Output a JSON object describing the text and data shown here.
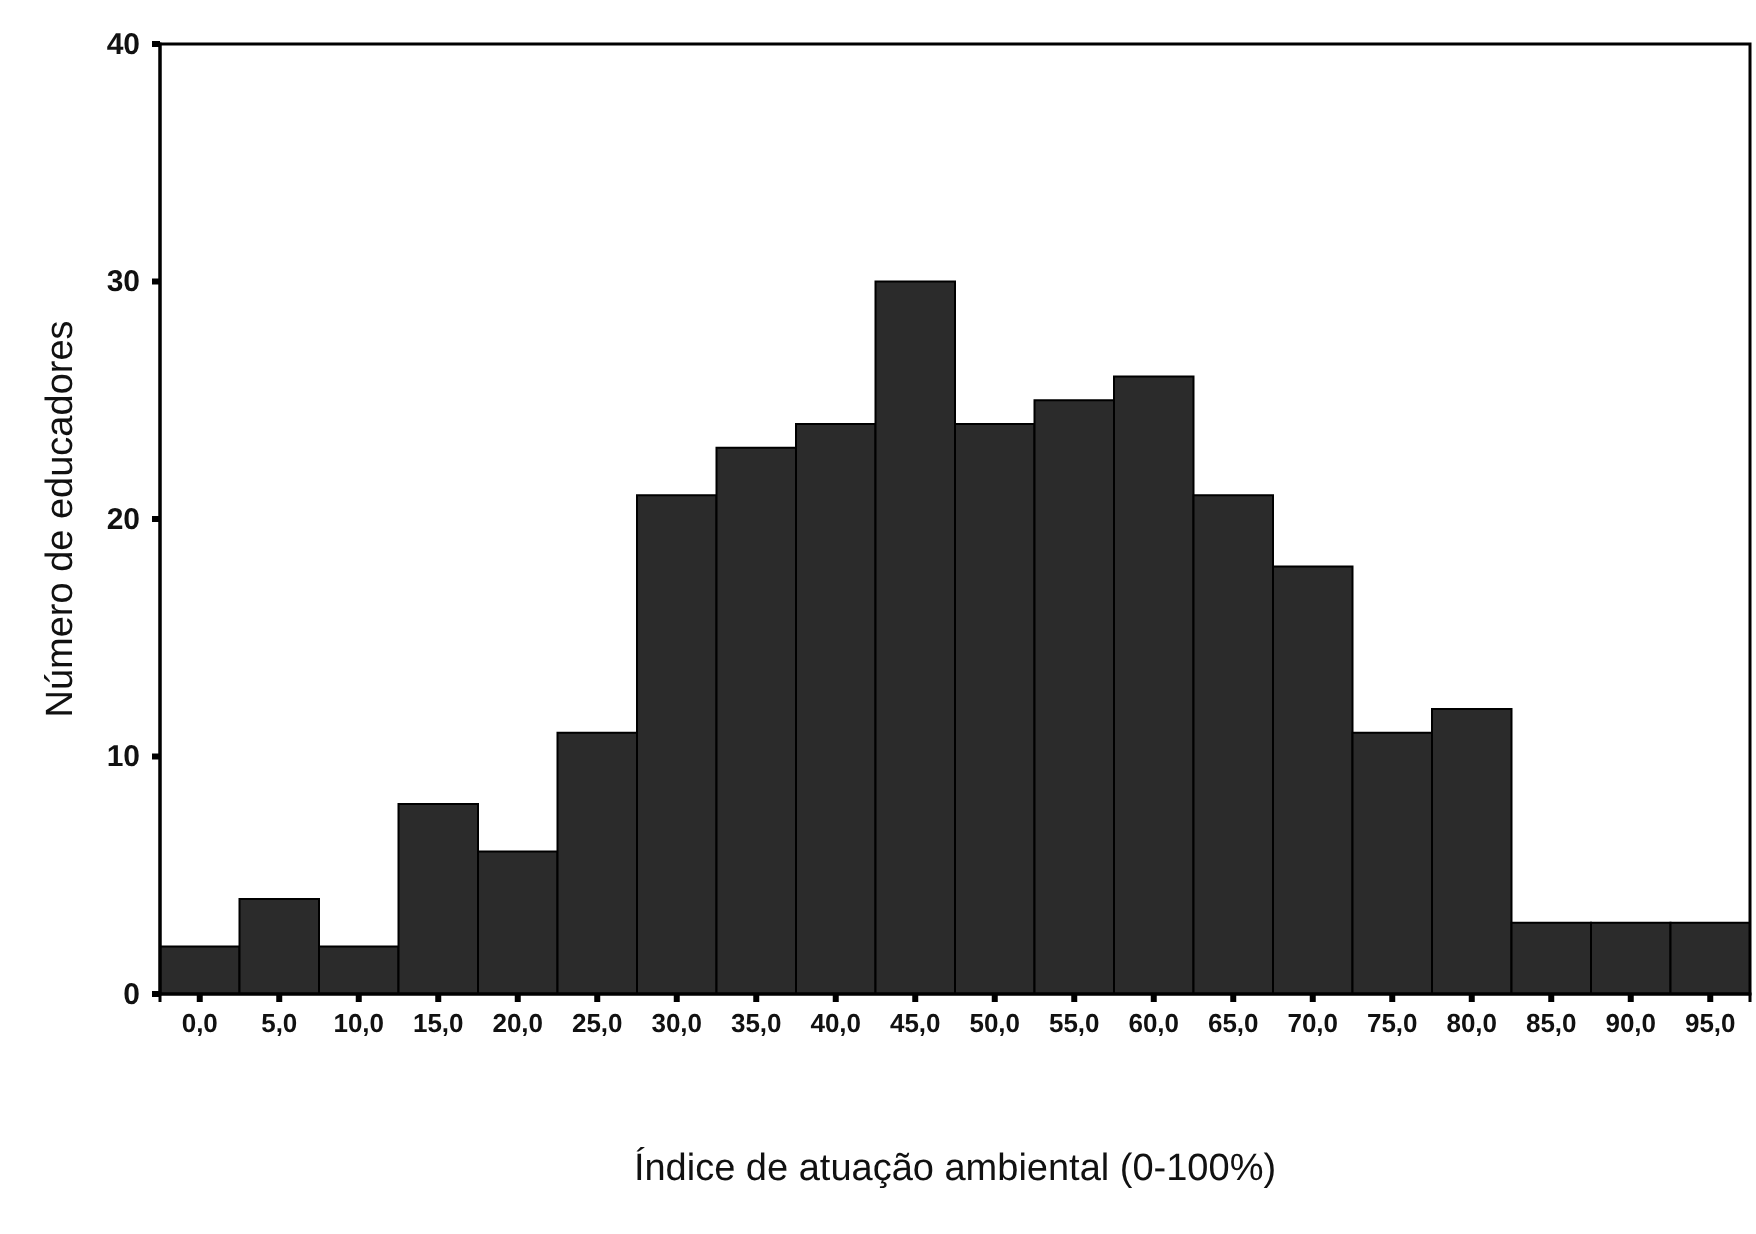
{
  "chart_data": {
    "type": "histogram",
    "xlabel": "Índice de atuação ambiental (0-100%)",
    "ylabel": "Número de educadores",
    "color": "#2b2b2b",
    "bins": [
      -2.5,
      2.5,
      7.5,
      12.5,
      17.5,
      22.5,
      27.5,
      32.5,
      37.5,
      42.5,
      47.5,
      52.5,
      57.5,
      62.5,
      67.5,
      72.5,
      77.5,
      82.5,
      87.5,
      92.5,
      97.5
    ],
    "values": [
      2,
      4,
      2,
      8,
      6,
      11,
      21,
      23,
      24,
      30,
      24,
      25,
      26,
      21,
      18,
      11,
      12,
      3,
      3,
      3
    ],
    "xlim": [
      -2.5,
      97.5
    ],
    "xticks": [
      {
        "value": 0,
        "label": "0,0"
      },
      {
        "value": 5,
        "label": "5,0"
      },
      {
        "value": 10,
        "label": "10,0"
      },
      {
        "value": 15,
        "label": "15,0"
      },
      {
        "value": 20,
        "label": "20,0"
      },
      {
        "value": 25,
        "label": "25,0"
      },
      {
        "value": 30,
        "label": "30,0"
      },
      {
        "value": 35,
        "label": "35,0"
      },
      {
        "value": 40,
        "label": "40,0"
      },
      {
        "value": 45,
        "label": "45,0"
      },
      {
        "value": 50,
        "label": "50,0"
      },
      {
        "value": 55,
        "label": "55,0"
      },
      {
        "value": 60,
        "label": "60,0"
      },
      {
        "value": 65,
        "label": "65,0"
      },
      {
        "value": 70,
        "label": "70,0"
      },
      {
        "value": 75,
        "label": "75,0"
      },
      {
        "value": 80,
        "label": "80,0"
      },
      {
        "value": 85,
        "label": "85,0"
      },
      {
        "value": 90,
        "label": "90,0"
      },
      {
        "value": 95,
        "label": "95,0"
      }
    ],
    "ylim": [
      0,
      40
    ],
    "yticks": [
      0,
      10,
      20,
      30,
      40
    ],
    "grid": false
  }
}
